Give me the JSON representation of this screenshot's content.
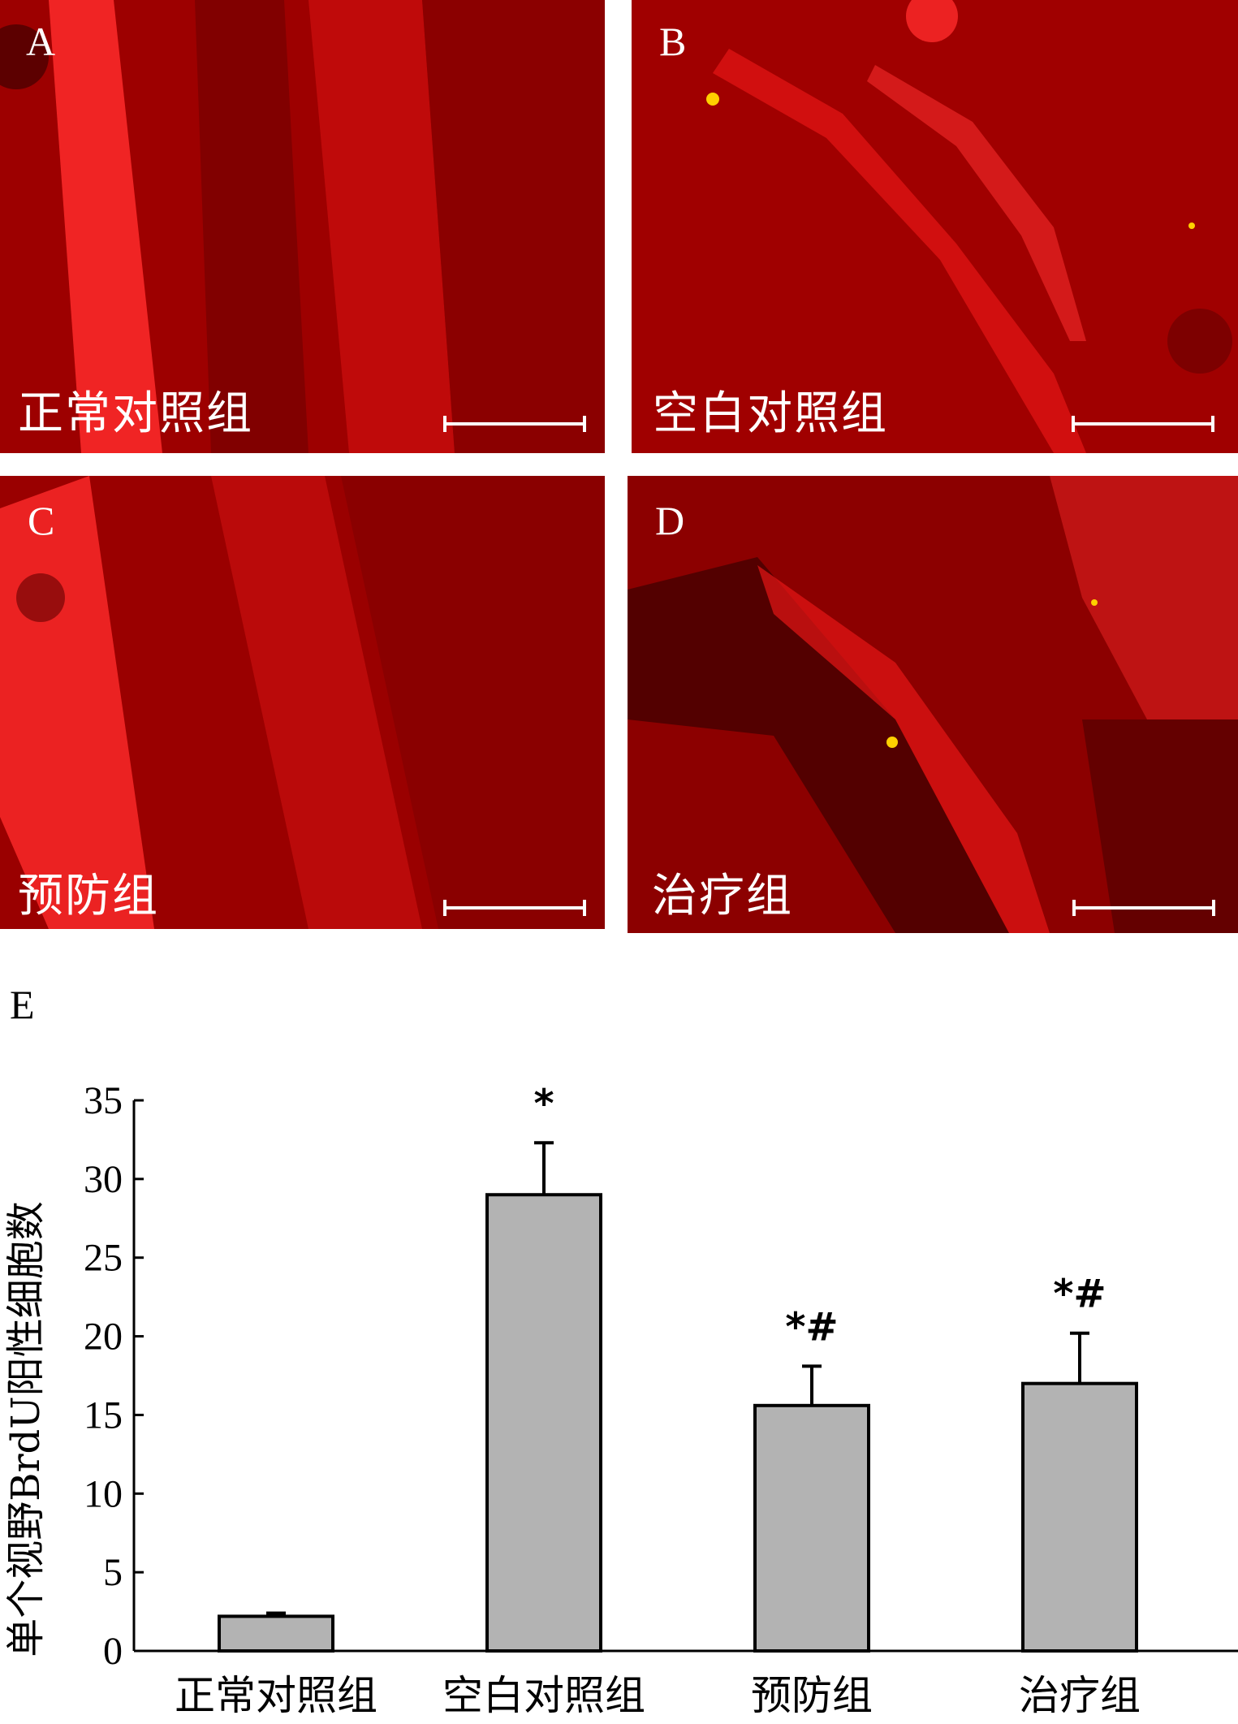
{
  "panels": [
    {
      "id": "A",
      "label": "A",
      "group": "正常对照组"
    },
    {
      "id": "B",
      "label": "B",
      "group": "空白对照组"
    },
    {
      "id": "C",
      "label": "C",
      "group": "预防组"
    },
    {
      "id": "D",
      "label": "D",
      "group": "治疗组"
    }
  ],
  "panel_e_label": "E",
  "colors": {
    "tissue": "#c10000",
    "bright": "#ff2020",
    "dark": "#5a0000",
    "bar": "#b3b3b3"
  },
  "chart_data": {
    "type": "bar",
    "ylabel": "单个视野BrdU阳性细胞数",
    "categories": [
      "正常对照组",
      "空白对照组",
      "预防组",
      "治疗组"
    ],
    "values": [
      2.2,
      29.0,
      15.6,
      17.0
    ],
    "errors": [
      0.2,
      3.3,
      2.5,
      3.2
    ],
    "annotations": [
      "",
      "*",
      "*#",
      "*#"
    ],
    "ylim": [
      0,
      35
    ],
    "yticks": [
      "0",
      "5",
      "10",
      "15",
      "20",
      "25",
      "30",
      "35"
    ]
  }
}
